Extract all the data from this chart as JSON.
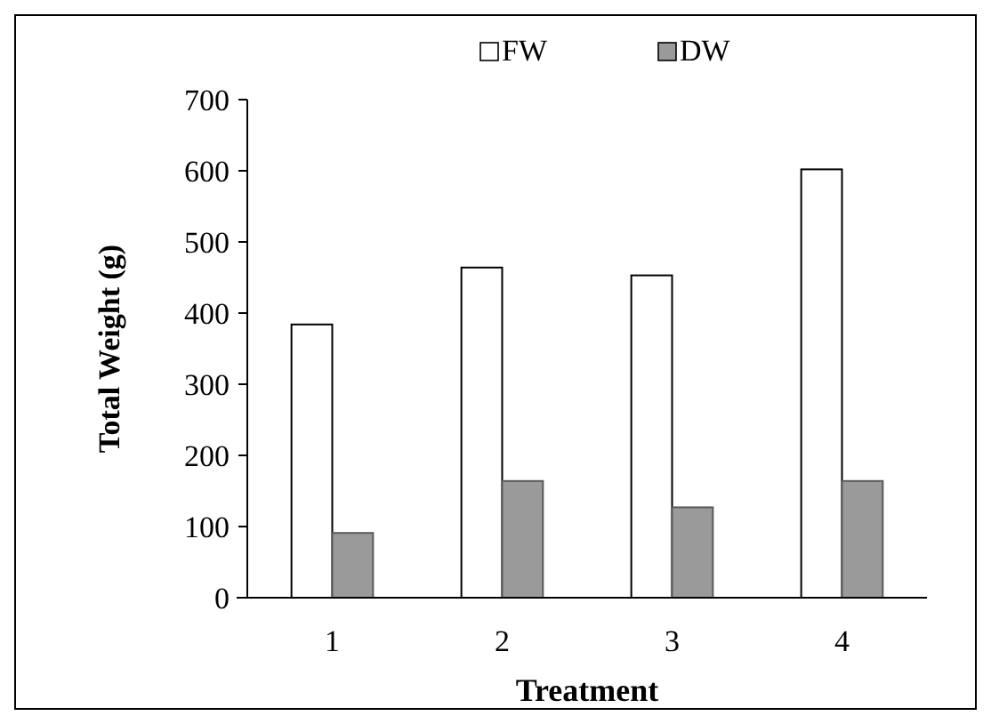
{
  "chart_data": {
    "type": "bar",
    "xlabel": "Treatment",
    "ylabel": "Total Weight (g)",
    "categories": [
      "1",
      "2",
      "3",
      "4"
    ],
    "series": [
      {
        "name": "FW",
        "color": "#ffffff",
        "values": [
          384,
          464,
          453,
          602
        ]
      },
      {
        "name": "DW",
        "color": "#9a9a9a",
        "values": [
          91,
          164,
          127,
          164
        ]
      }
    ],
    "ylim": [
      0,
      700
    ],
    "yticks": [
      0,
      100,
      200,
      300,
      400,
      500,
      600,
      700
    ],
    "legend": "top",
    "grid": false
  }
}
